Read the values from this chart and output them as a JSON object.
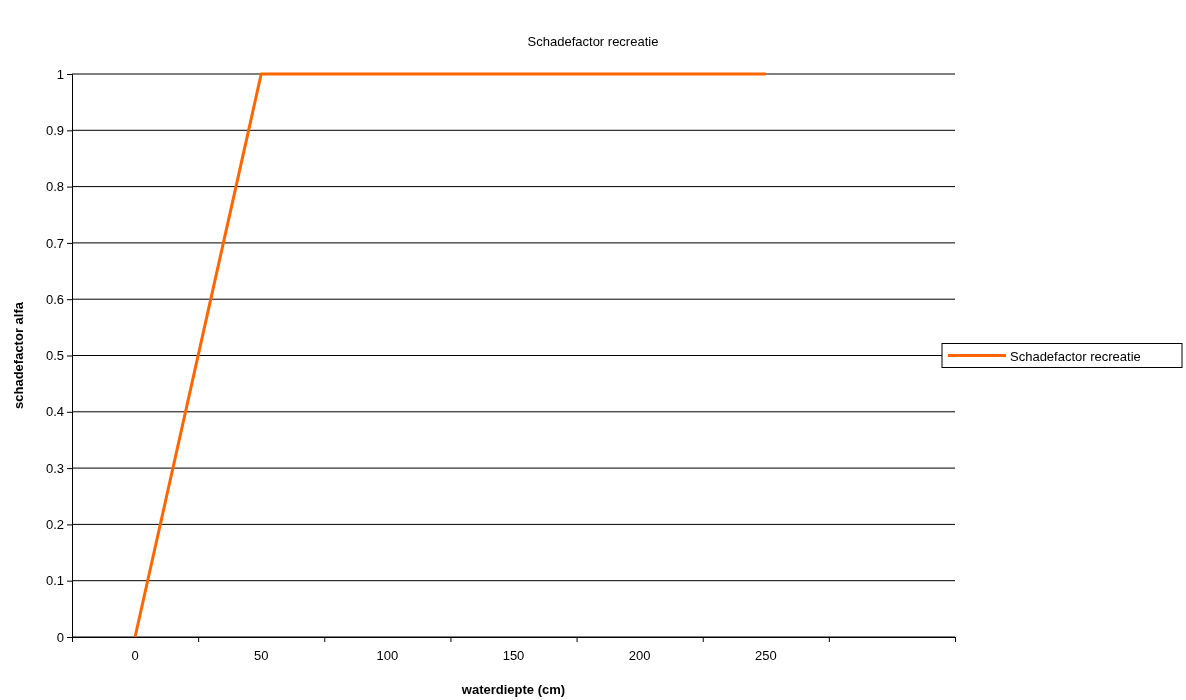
{
  "chart_data": {
    "type": "line",
    "title": "Schadefactor recreatie",
    "xlabel": "waterdiepte (cm)",
    "ylabel": "schadefactor alfa",
    "categories": [
      "0",
      "50",
      "100",
      "150",
      "200",
      "250",
      null
    ],
    "series": [
      {
        "name": "Schadefactor recreatie",
        "color": "#ff6600",
        "values": [
          0,
          1,
          1,
          1,
          1,
          1,
          null
        ]
      }
    ],
    "ylim": [
      0,
      1
    ],
    "yticks": [
      0,
      0.1,
      0.2,
      0.3,
      0.4,
      0.5,
      0.6,
      0.7,
      0.8,
      0.9,
      1
    ],
    "grid": "y",
    "legend": "right",
    "marker": "none",
    "line_style": "solid"
  }
}
